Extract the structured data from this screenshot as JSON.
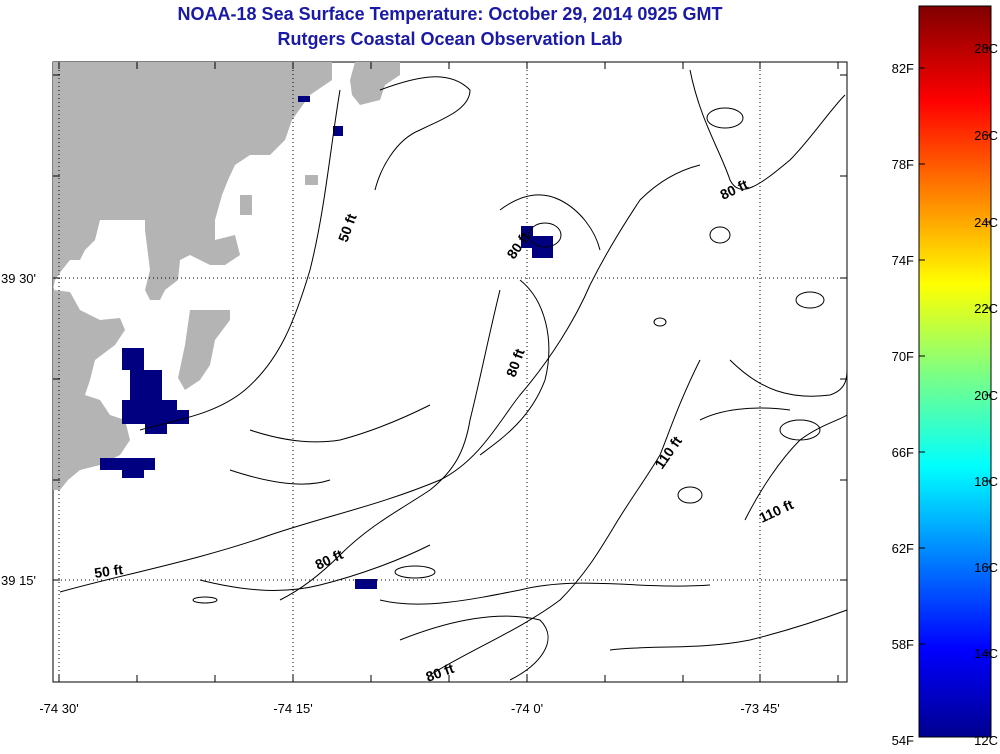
{
  "header": {
    "title": "NOAA-18 Sea Surface Temperature:  October 29, 2014 0925 GMT",
    "subtitle": "Rutgers Coastal Ocean Observation Lab"
  },
  "axes": {
    "lon_labels": [
      "-74 30'",
      "-74 15'",
      "-74 0'",
      "-73 45'"
    ],
    "lat_labels": [
      "39 30'",
      "39 15'"
    ]
  },
  "contour_labels": [
    "50 ft",
    "50 ft",
    "80 ft",
    "80 ft",
    "80 ft",
    "80 ft",
    "80 ft",
    "110 ft",
    "110 ft"
  ],
  "colorbar": {
    "f_labels": [
      "82F",
      "78F",
      "74F",
      "70F",
      "66F",
      "62F",
      "58F",
      "54F"
    ],
    "c_labels": [
      "28C",
      "26C",
      "24C",
      "22C",
      "20C",
      "18C",
      "16C",
      "14C",
      "12C"
    ]
  },
  "colors": {
    "title": "#1a1aa6",
    "land": "#b4b4b4",
    "cold_pixel": "#000080"
  }
}
